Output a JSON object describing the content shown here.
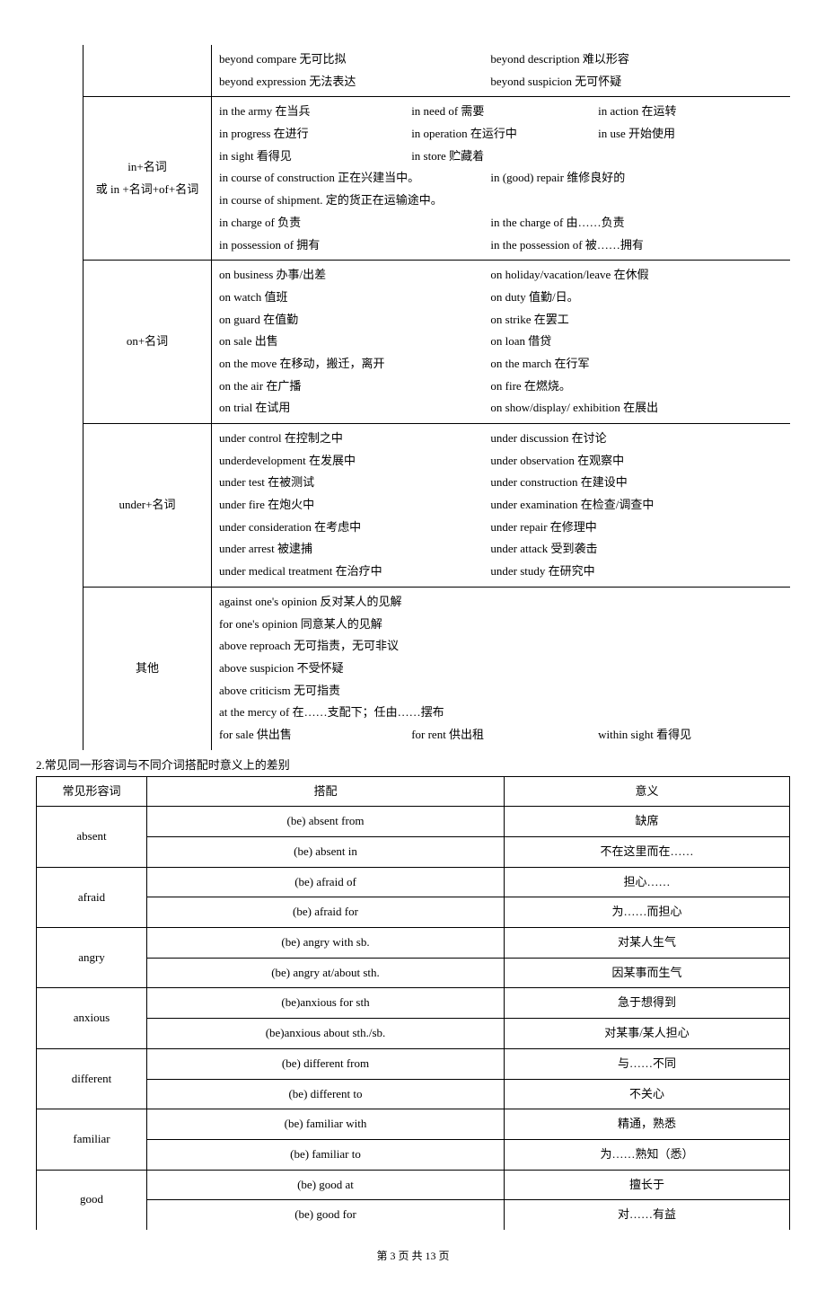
{
  "table1": {
    "rows": [
      {
        "col2": "",
        "content": [
          {
            "type": "pair",
            "a": "beyond compare 无可比拟",
            "b": "beyond description 难以形容"
          },
          {
            "type": "pair",
            "a": "beyond expression 无法表达",
            "b": "beyond suspicion 无可怀疑"
          }
        ]
      },
      {
        "col2": "in+名词\n或 in +名词+of+名词",
        "content": [
          {
            "type": "triple",
            "a": "in the army 在当兵",
            "b": "in need of 需要",
            "c": "in action 在运转"
          },
          {
            "type": "triple",
            "a": "in progress 在进行",
            "b": "in operation 在运行中",
            "c": "in use 开始使用"
          },
          {
            "type": "triple",
            "a": "in sight 看得见",
            "b": "in store 贮藏着",
            "c": ""
          },
          {
            "type": "pair",
            "a": "in course of construction 正在兴建当中。",
            "b": "in (good) repair 维修良好的"
          },
          {
            "type": "single",
            "text": "in course of shipment. 定的货正在运输途中。"
          },
          {
            "type": "pair",
            "a": "in charge of 负责",
            "b": "in the charge of 由……负责"
          },
          {
            "type": "pair",
            "a": "in possession of 拥有",
            "b": "in the possession of 被……拥有"
          }
        ]
      },
      {
        "col2": "on+名词",
        "content": [
          {
            "type": "pair",
            "a": "on business 办事/出差",
            "b": "  on holiday/vacation/leave 在休假"
          },
          {
            "type": "pair",
            "a": "on watch 值班",
            "b": "on duty 值勤/日。"
          },
          {
            "type": "pair",
            "a": "on guard 在值勤",
            "b": "on strike 在罢工"
          },
          {
            "type": "pair",
            "a": "on sale 出售",
            "b": " on loan 借贷"
          },
          {
            "type": "pair",
            "a": "on the move  在移动，搬迁，离开",
            "b": "on the march 在行军"
          },
          {
            "type": "pair",
            "a": "on the air 在广播",
            "b": " on fire 在燃烧。"
          },
          {
            "type": "pair",
            "a": "on trial 在试用",
            "b": "on show/display/ exhibition 在展出"
          }
        ]
      },
      {
        "col2": "under+名词",
        "content": [
          {
            "type": "pair",
            "a": "under control 在控制之中",
            "b": "under discussion 在讨论"
          },
          {
            "type": "pair",
            "a": "underdevelopment 在发展中",
            "b": "under observation 在观察中"
          },
          {
            "type": "pair",
            "a": "under test 在被测试",
            "b": "under construction 在建设中"
          },
          {
            "type": "pair",
            "a": "under fire 在炮火中",
            "b": "under examination 在检查/调查中"
          },
          {
            "type": "pair",
            "a": "under consideration 在考虑中",
            "b": "under repair 在修理中"
          },
          {
            "type": "pair",
            "a": "under arrest 被逮捕",
            "b": "under attack 受到袭击"
          },
          {
            "type": "pair",
            "a": "under medical treatment 在治疗中",
            "b": "under study 在研究中"
          }
        ]
      },
      {
        "col2": "其他",
        "content": [
          {
            "type": "single",
            "text": "against one's opinion 反对某人的见解"
          },
          {
            "type": "single",
            "text": "for one's opinion 同意某人的见解"
          },
          {
            "type": "single",
            "text": "above reproach 无可指责，无可非议"
          },
          {
            "type": "single",
            "text": "above suspicion 不受怀疑"
          },
          {
            "type": "single",
            "text": "above criticism 无可指责"
          },
          {
            "type": "single",
            "text": "at the mercy of 在……支配下；任由……摆布"
          },
          {
            "type": "triple",
            "a": "for sale 供出售",
            "b": "for rent 供出租",
            "c": "within sight 看得见"
          }
        ]
      }
    ]
  },
  "caption2": "2.常见同一形容词与不同介词搭配时意义上的差别",
  "table2": {
    "headers": [
      "常见形容词",
      "搭配",
      "意义"
    ],
    "groups": [
      {
        "adj": "absent",
        "rows": [
          [
            "(be) absent from",
            "缺席"
          ],
          [
            "(be) absent in",
            "不在这里而在……"
          ]
        ]
      },
      {
        "adj": "afraid",
        "rows": [
          [
            "(be) afraid of",
            "担心……"
          ],
          [
            "(be) afraid for",
            "为……而担心"
          ]
        ]
      },
      {
        "adj": "angry",
        "rows": [
          [
            "(be) angry with sb.",
            "对某人生气"
          ],
          [
            "(be) angry at/about sth.",
            "因某事而生气"
          ]
        ]
      },
      {
        "adj": "anxious",
        "rows": [
          [
            "(be)anxious for sth",
            "急于想得到"
          ],
          [
            "(be)anxious about sth./sb.",
            "对某事/某人担心"
          ]
        ]
      },
      {
        "adj": "different",
        "rows": [
          [
            "(be) different from",
            "与……不同"
          ],
          [
            "(be) different to",
            "不关心"
          ]
        ]
      },
      {
        "adj": "familiar",
        "rows": [
          [
            "(be) familiar with",
            "精通，熟悉"
          ],
          [
            "(be) familiar to",
            "为……熟知（悉）"
          ]
        ]
      },
      {
        "adj": "good",
        "rows": [
          [
            "(be) good at",
            "擅长于"
          ],
          [
            "(be) good for",
            "对……有益"
          ]
        ]
      }
    ]
  },
  "footer": {
    "prefix": "第 ",
    "page": "3",
    "mid": " 页   共 ",
    "total": "13",
    "suffix": " 页"
  }
}
